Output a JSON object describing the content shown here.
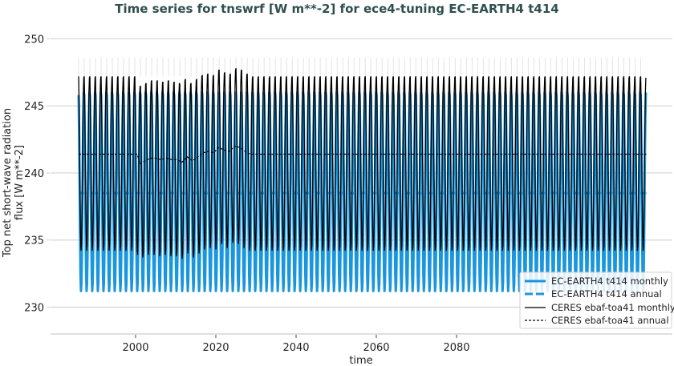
{
  "chart_data": {
    "type": "line",
    "title": "Time series for tnswrf [W m**-2] for ece4-tuning EC-EARTH4 t414",
    "xlabel": "time",
    "ylabel_lines": [
      "Top net short-wave radiation",
      "flux [W m**-2]"
    ],
    "xlim": [
      1978.8,
      2133.8
    ],
    "ylim": [
      228.0,
      251.1
    ],
    "xticks": [
      2000,
      2020,
      2040,
      2060,
      2080
    ],
    "xtick_labels": [
      "2000",
      "2020",
      "2040",
      "2060",
      "2080"
    ],
    "yticks": [
      230,
      235,
      240,
      245,
      250
    ],
    "ytick_labels": [
      "230",
      "235",
      "240",
      "245",
      "250"
    ],
    "grid": "horizontal",
    "legend_position": "bottom-right",
    "series": [
      {
        "name": "EC-EARTH4 t414 monthly",
        "color": "#1a96de",
        "style": "solid",
        "x_start": 1985.8,
        "x_end": 2127.3,
        "cycles": 101,
        "monthly_cycle": [
          245.8,
          243.2,
          239.2,
          235.4,
          232.4,
          231.2,
          231.8,
          233.9,
          237.4,
          241.3,
          244.4,
          246.0
        ]
      },
      {
        "name": "EC-EARTH4 t414 annual",
        "color": "#1a96de",
        "style": "dashed",
        "x_start": 1985.8,
        "x_end": 2127.3,
        "value": 238.5
      },
      {
        "name": "CERES ebaf-toa41 monthly",
        "color": "#000000",
        "style": "solid",
        "x_start": 1985.8,
        "x_end": 2127.3,
        "cycles": 101,
        "monthly_cycle": [
          247.2,
          245.2,
          241.8,
          238.4,
          235.6,
          234.2,
          234.6,
          236.6,
          240.0,
          243.4,
          246.0,
          247.1
        ],
        "observed_x_start": 2000.4,
        "observed_x_end": 2030.6
      },
      {
        "name": "CERES ebaf-toa41 annual",
        "color": "#000000",
        "style": "dashed",
        "x_start": 1985.8,
        "x_end": 2127.3,
        "climatology_value": 241.4,
        "observed_x_start": 2000.4,
        "observed_x_end": 2030.6,
        "observed_values": [
          240.7,
          240.9,
          241.1,
          241.1,
          241.0,
          241.1,
          241.0,
          241.0,
          240.8,
          241.2,
          240.9,
          241.2,
          241.5,
          241.6,
          241.5,
          241.9,
          241.7,
          241.6,
          242.0,
          241.9,
          241.6,
          241.4,
          241.4
        ]
      },
      {
        "color": "#e4e4e4",
        "style": "solid",
        "x_start": 1985.8,
        "x_end": 2127.3,
        "cycles": 101,
        "upper_peak": 248.6
      }
    ]
  }
}
